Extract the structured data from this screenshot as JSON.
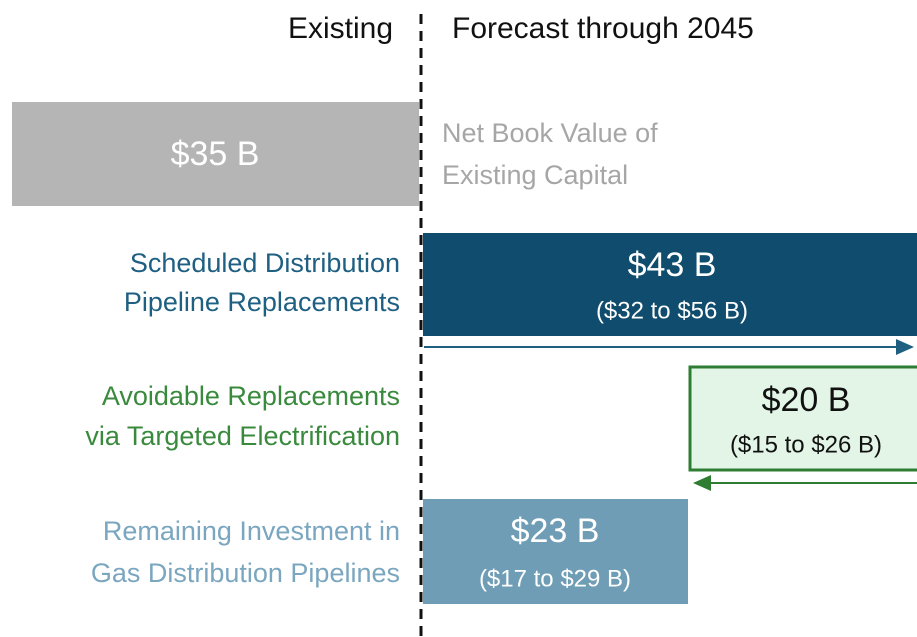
{
  "header": {
    "existing": "Existing",
    "forecast": "Forecast through 2045"
  },
  "existing": {
    "value": "$35 B",
    "label": [
      "Net Book Value of",
      "Existing Capital"
    ]
  },
  "rows": [
    {
      "label": [
        "Scheduled Distribution",
        "Pipeline Replacements"
      ],
      "value": "$43 B",
      "range": "($32 to $56 B)"
    },
    {
      "label": [
        "Avoidable Replacements",
        "via Targeted Electrification"
      ],
      "value": "$20 B",
      "range": "($15 to $26 B)"
    },
    {
      "label": [
        "Remaining Investment in",
        "Gas Distribution Pipelines"
      ],
      "value": "$23 B",
      "range": "($17 to $29 B)"
    }
  ]
}
